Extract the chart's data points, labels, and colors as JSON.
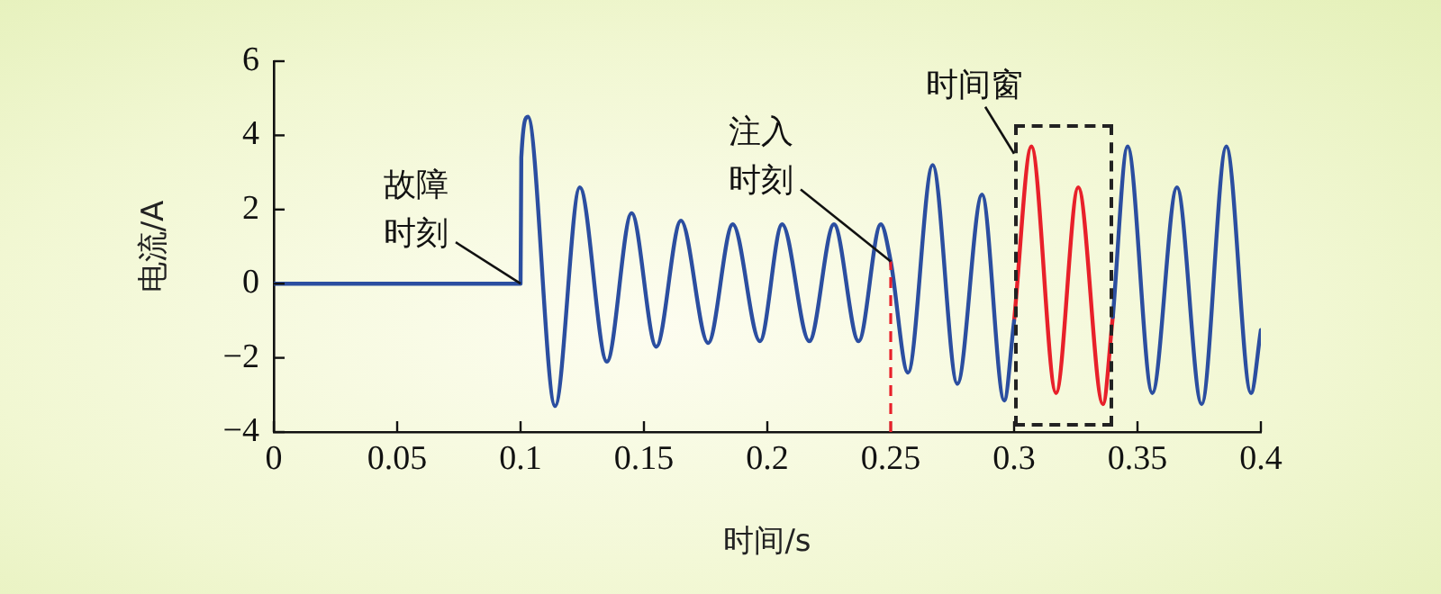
{
  "chart_data": {
    "type": "line",
    "xlabel": "时间/s",
    "ylabel": "电流/A",
    "xlim": [
      0,
      0.4
    ],
    "xticks": [
      0,
      0.05,
      0.1,
      0.15,
      0.2,
      0.25,
      0.3,
      0.35,
      0.4
    ],
    "ylim": [
      -4,
      6
    ],
    "yticks": [
      -4,
      -2,
      0,
      2,
      4,
      6
    ],
    "grid": false,
    "legend": false,
    "marker": "none",
    "line_style": "solid",
    "series": [
      {
        "color": "#2b4ea0",
        "x": [
          0,
          0.1,
          0.1003,
          0.103,
          0.114,
          0.124,
          0.135,
          0.145,
          0.155,
          0.165,
          0.176,
          0.186,
          0.197,
          0.206,
          0.217,
          0.227,
          0.237,
          0.246,
          0.25,
          0.257,
          0.267,
          0.277,
          0.287,
          0.296,
          0.3,
          0.32,
          0.34,
          0.346,
          0.356,
          0.366,
          0.376,
          0.386,
          0.396,
          0.4
        ],
        "values": [
          0,
          0,
          3.4,
          4.5,
          -3.3,
          2.6,
          -2.1,
          1.9,
          -1.7,
          1.7,
          -1.6,
          1.6,
          -1.55,
          1.6,
          -1.55,
          1.6,
          -1.55,
          1.6,
          0.6,
          -2.4,
          3.2,
          -2.7,
          2.4,
          -3.15,
          -1,
          null,
          -0.9,
          3.7,
          -2.95,
          2.6,
          -3.25,
          3.7,
          -2.95,
          -1.25
        ]
      },
      {
        "color": "#e8202a",
        "x": [
          0.3,
          0.307,
          0.317,
          0.326,
          0.336,
          0.34
        ],
        "values": [
          -1,
          3.7,
          -2.95,
          2.6,
          -3.25,
          -0.9
        ]
      }
    ],
    "ref_lines": [
      {
        "axis": "x",
        "value": 0.25,
        "color": "#e8202a",
        "line_style": "dashed"
      }
    ],
    "annotations": [
      {
        "text": "故障时刻",
        "x": 0.1,
        "y": 0
      },
      {
        "text": "注入时刻",
        "x": 0.25,
        "y": 0.6
      },
      "时间窗"
    ]
  }
}
